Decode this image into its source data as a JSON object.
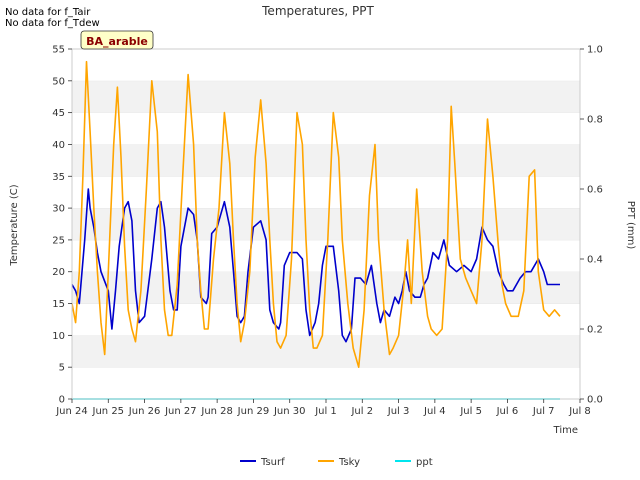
{
  "notes": [
    "No data for f_Tair",
    "No data for f_Tdew"
  ],
  "site_label": "BA_arable",
  "chart_data": {
    "type": "line",
    "title": "Temperatures, PPT",
    "xlabel": "Time",
    "ylabel": "Temperature (C)",
    "y2label": "PPT (mm)",
    "xlim": [
      0,
      14
    ],
    "ylim": [
      0,
      55
    ],
    "y2lim": [
      0.0,
      1.0
    ],
    "x_ticks": [
      0,
      1,
      2,
      3,
      4,
      5,
      6,
      7,
      8,
      9,
      10,
      11,
      12,
      13,
      14
    ],
    "x_tick_labels": [
      "Jun 24",
      "Jun 25",
      "Jun 26",
      "Jun 27",
      "Jun 28",
      "Jun 29",
      "Jun 30",
      "Jul 1",
      "Jul 2",
      "Jul 3",
      "Jul 4",
      "Jul 5",
      "Jul 6",
      "Jul 7",
      "Jul 8"
    ],
    "y_ticks": [
      0,
      5,
      10,
      15,
      20,
      25,
      30,
      35,
      40,
      45,
      50,
      55
    ],
    "y2_ticks": [
      0.0,
      0.2,
      0.4,
      0.6,
      0.8,
      1.0
    ],
    "y2_tick_labels": [
      "0.0",
      "0.2",
      "0.4",
      "0.6",
      "0.8",
      "1.0"
    ],
    "grid": "horizontal bands",
    "legend_position": "bottom",
    "series": [
      {
        "name": "Tsurf",
        "axis": "left",
        "color": "#0000cc",
        "x": [
          0.0,
          0.1,
          0.2,
          0.35,
          0.45,
          0.5,
          0.6,
          0.7,
          0.8,
          1.0,
          1.1,
          1.2,
          1.3,
          1.45,
          1.55,
          1.65,
          1.75,
          1.85,
          2.0,
          2.2,
          2.35,
          2.45,
          2.55,
          2.7,
          2.8,
          2.9,
          3.0,
          3.2,
          3.35,
          3.45,
          3.55,
          3.7,
          3.75,
          3.85,
          4.0,
          4.2,
          4.35,
          4.45,
          4.55,
          4.65,
          4.75,
          4.85,
          5.0,
          5.2,
          5.35,
          5.45,
          5.55,
          5.7,
          5.75,
          5.85,
          6.0,
          6.2,
          6.35,
          6.45,
          6.55,
          6.7,
          6.8,
          6.9,
          7.0,
          7.2,
          7.35,
          7.45,
          7.55,
          7.7,
          7.8,
          7.95,
          8.1,
          8.25,
          8.4,
          8.5,
          8.6,
          8.75,
          8.9,
          9.0,
          9.1,
          9.2,
          9.3,
          9.45,
          9.6,
          9.7,
          9.8,
          9.95,
          10.1,
          10.25,
          10.4,
          10.6,
          10.8,
          11.0,
          11.15,
          11.3,
          11.45,
          11.6,
          11.75,
          11.9,
          12.0,
          12.15,
          12.35,
          12.5,
          12.65,
          12.85,
          13.0,
          13.1,
          13.25,
          13.35,
          13.45
        ],
        "y": [
          18,
          17,
          15,
          25,
          33,
          30,
          27,
          23,
          20,
          17,
          11,
          17,
          24,
          30,
          31,
          28,
          17,
          12,
          13,
          22,
          30,
          31,
          27,
          17,
          14,
          14,
          24,
          30,
          29,
          25,
          16,
          15,
          16,
          26,
          27,
          31,
          27,
          20,
          13,
          12,
          13,
          20,
          27,
          28,
          25,
          14,
          12,
          11,
          12,
          21,
          23,
          23,
          22,
          14,
          10,
          12,
          15,
          21,
          24,
          24,
          17,
          10,
          9,
          11,
          19,
          19,
          18,
          21,
          15,
          12,
          14,
          13,
          16,
          15,
          17,
          20,
          17,
          16,
          16,
          18,
          19,
          23,
          22,
          25,
          21,
          20,
          21,
          20,
          22,
          27,
          25,
          24,
          20,
          18,
          17,
          17,
          19,
          20,
          20,
          22,
          20,
          18,
          18,
          18,
          18
        ]
      },
      {
        "name": "Tsky",
        "axis": "left",
        "color": "#ffa500",
        "x": [
          0.0,
          0.1,
          0.2,
          0.3,
          0.4,
          0.5,
          0.6,
          0.7,
          0.8,
          0.9,
          1.0,
          1.15,
          1.25,
          1.35,
          1.45,
          1.55,
          1.65,
          1.75,
          1.9,
          2.05,
          2.2,
          2.35,
          2.45,
          2.55,
          2.65,
          2.75,
          2.9,
          3.05,
          3.2,
          3.35,
          3.45,
          3.55,
          3.65,
          3.75,
          3.9,
          4.05,
          4.2,
          4.35,
          4.45,
          4.55,
          4.65,
          4.75,
          4.9,
          5.05,
          5.2,
          5.35,
          5.45,
          5.55,
          5.65,
          5.75,
          5.9,
          6.05,
          6.2,
          6.35,
          6.45,
          6.55,
          6.65,
          6.75,
          6.9,
          7.05,
          7.2,
          7.35,
          7.45,
          7.6,
          7.75,
          7.9,
          8.05,
          8.2,
          8.35,
          8.45,
          8.6,
          8.75,
          8.85,
          9.0,
          9.15,
          9.25,
          9.35,
          9.5,
          9.65,
          9.8,
          9.9,
          10.05,
          10.2,
          10.35,
          10.45,
          10.55,
          10.7,
          10.85,
          11.0,
          11.15,
          11.3,
          11.45,
          11.6,
          11.75,
          11.85,
          11.95,
          12.1,
          12.3,
          12.45,
          12.6,
          12.75,
          12.85,
          13.0,
          13.15,
          13.3,
          13.45
        ],
        "y": [
          15,
          12,
          20,
          35,
          53,
          42,
          30,
          20,
          12,
          7,
          20,
          40,
          49,
          38,
          24,
          14,
          11,
          9,
          17,
          33,
          50,
          42,
          25,
          14,
          10,
          10,
          18,
          35,
          51,
          40,
          25,
          17,
          11,
          11,
          22,
          30,
          45,
          37,
          25,
          15,
          9,
          12,
          20,
          38,
          47,
          37,
          25,
          15,
          9,
          8,
          10,
          22,
          45,
          40,
          25,
          14,
          8,
          8,
          10,
          25,
          45,
          38,
          25,
          15,
          8,
          5,
          14,
          32,
          40,
          25,
          14,
          7,
          8,
          10,
          18,
          25,
          15,
          33,
          20,
          13,
          11,
          10,
          11,
          25,
          46,
          37,
          22,
          19,
          17,
          15,
          25,
          44,
          35,
          24,
          18,
          15,
          13,
          13,
          17,
          35,
          36,
          20,
          14,
          13,
          14,
          13
        ]
      },
      {
        "name": "ppt",
        "axis": "right",
        "color": "#00e5ee",
        "x": [
          0.0,
          13.45
        ],
        "y": [
          0.0,
          0.0
        ]
      }
    ]
  }
}
